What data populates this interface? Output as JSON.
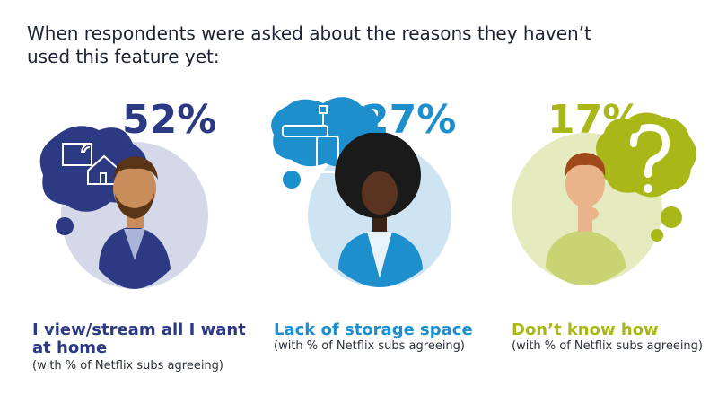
{
  "intro": "When respondents were asked about the reasons they haven’t used this feature yet:",
  "chart_data": {
    "type": "bar",
    "title": "",
    "categories": [
      "I view/stream all I want at home",
      "Lack of storage space",
      "Don’t know how"
    ],
    "values": [
      52,
      27,
      17
    ],
    "unit": "%",
    "value_labels": [
      "52%",
      "27%",
      "17%"
    ],
    "footnote": "(with % of Netflix subs agreeing)",
    "icons": [
      "house-wifi-icon",
      "hard-drive-icon",
      "question-mark-icon"
    ]
  },
  "reasons": [
    {
      "pct": "52%",
      "title_line1": "I view/stream all I want",
      "title_line2": "at home",
      "sub": "(with % of Netflix subs agreeing)"
    },
    {
      "pct": "27%",
      "title_line1": "Lack of storage space",
      "title_line2": "",
      "sub": "(with % of Netflix subs agreeing)"
    },
    {
      "pct": "17%",
      "title_line1": "Don’t know how",
      "title_line2": "",
      "sub": "(with % of Netflix subs agreeing)"
    }
  ],
  "colors": {
    "navy": "#2b3a82",
    "blue": "#1d8fcd",
    "olive": "#a9b719",
    "navy_light": "#d4d8e8",
    "blue_light": "#cfe4f2",
    "olive_light": "#e6ebbf"
  }
}
